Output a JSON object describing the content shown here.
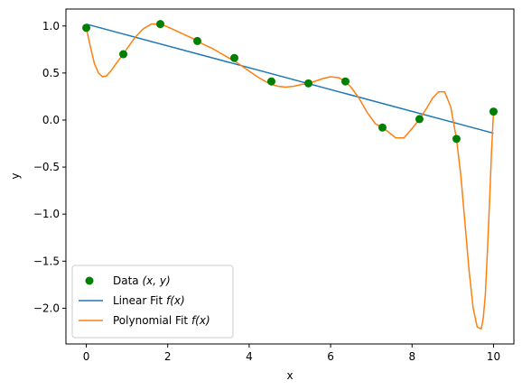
{
  "chart_data": {
    "type": "scatter",
    "title": "",
    "xlabel": "x",
    "ylabel": "y",
    "xlim": [
      -0.5,
      10.5
    ],
    "ylim": [
      -2.38,
      1.18
    ],
    "xticks": [
      0,
      2,
      4,
      6,
      8,
      10
    ],
    "xtick_labels": [
      "0",
      "2",
      "4",
      "6",
      "8",
      "10"
    ],
    "yticks": [
      -2.0,
      -1.5,
      -1.0,
      -0.5,
      0.0,
      0.5,
      1.0
    ],
    "ytick_labels": [
      "−2.0",
      "−1.5",
      "−1.0",
      "−0.5",
      "0.0",
      "0.5",
      "1.0"
    ],
    "grid": false,
    "legend_position": "lower-left",
    "series": [
      {
        "name": "Data",
        "label_text": "Data ",
        "label_math": "(x, y)",
        "kind": "scatter",
        "color": "#008000",
        "x": [
          0,
          0.909,
          1.818,
          2.727,
          3.636,
          4.545,
          5.455,
          6.364,
          7.273,
          8.182,
          9.091,
          10
        ],
        "y": [
          0.98,
          0.7,
          1.02,
          0.84,
          0.66,
          0.41,
          0.39,
          0.41,
          -0.08,
          0.01,
          -0.2,
          0.09
        ]
      },
      {
        "name": "Linear Fit",
        "label_text": "Linear Fit ",
        "label_math": "f(x)",
        "kind": "line",
        "color": "#1f77b4",
        "x": [
          0,
          10
        ],
        "y": [
          1.02,
          -0.14
        ]
      },
      {
        "name": "Polynomial Fit",
        "label_text": "Polynomial Fit ",
        "label_math": "f(x)",
        "kind": "line",
        "color": "#ff7f0e",
        "x": [
          0,
          0.1,
          0.2,
          0.3,
          0.4,
          0.5,
          0.6,
          0.7,
          0.8,
          0.909,
          1.0,
          1.2,
          1.4,
          1.6,
          1.818,
          2.0,
          2.2,
          2.4,
          2.6,
          2.727,
          2.9,
          3.1,
          3.3,
          3.5,
          3.636,
          3.8,
          4.0,
          4.2,
          4.4,
          4.545,
          4.7,
          4.9,
          5.1,
          5.3,
          5.455,
          5.6,
          5.8,
          6.0,
          6.2,
          6.364,
          6.5,
          6.7,
          6.9,
          7.1,
          7.273,
          7.4,
          7.6,
          7.8,
          8.0,
          8.182,
          8.35,
          8.5,
          8.65,
          8.8,
          8.95,
          9.091,
          9.2,
          9.3,
          9.4,
          9.5,
          9.6,
          9.7,
          9.75,
          9.8,
          9.85,
          9.9,
          9.95,
          10
        ],
        "y": [
          0.98,
          0.78,
          0.6,
          0.5,
          0.46,
          0.47,
          0.52,
          0.58,
          0.64,
          0.7,
          0.76,
          0.88,
          0.97,
          1.02,
          1.02,
          0.99,
          0.95,
          0.91,
          0.87,
          0.84,
          0.8,
          0.76,
          0.71,
          0.66,
          0.63,
          0.58,
          0.52,
          0.46,
          0.41,
          0.38,
          0.36,
          0.35,
          0.36,
          0.38,
          0.39,
          0.41,
          0.44,
          0.46,
          0.45,
          0.41,
          0.35,
          0.23,
          0.08,
          -0.04,
          -0.08,
          -0.12,
          -0.19,
          -0.19,
          -0.09,
          0.01,
          0.12,
          0.23,
          0.3,
          0.3,
          0.14,
          -0.2,
          -0.6,
          -1.1,
          -1.6,
          -2.0,
          -2.2,
          -2.22,
          -2.1,
          -1.85,
          -1.4,
          -0.9,
          -0.35,
          0.09
        ]
      }
    ]
  }
}
